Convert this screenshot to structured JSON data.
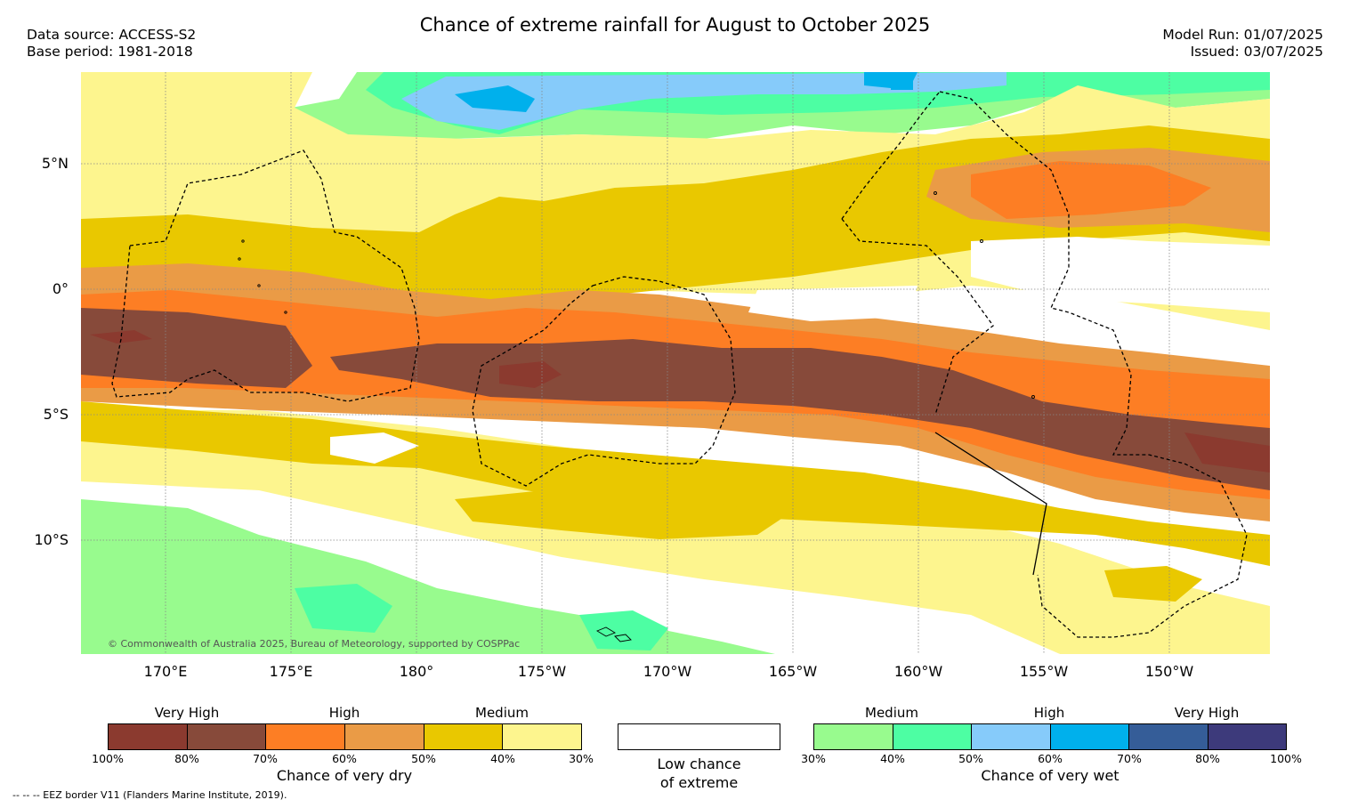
{
  "title": "Chance of extreme rainfall for August to October 2025",
  "header": {
    "data_source": "Data source: ACCESS-S2",
    "base_period": "Base period: 1981-2018",
    "model_run": "Model Run: 01/07/2025",
    "issued": "Issued: 03/07/2025"
  },
  "map": {
    "lat_labels": [
      "5°N",
      "0°",
      "5°S",
      "10°S"
    ],
    "lon_labels": [
      "170°E",
      "175°E",
      "180°",
      "175°W",
      "170°W",
      "165°W",
      "160°W",
      "155°W",
      "150°W"
    ],
    "copyright": "© Commonwealth of Australia 2025, Bureau of Meteorology, supported by COSPPac",
    "colors": {
      "dry_100_80": "#8b3a2f",
      "dry_80_70": "#874a3a",
      "dry_70_60": "#fd7e24",
      "dry_60_50": "#ea9b46",
      "dry_50_40": "#e9c800",
      "dry_40_30": "#fdf58e",
      "low": "#ffffff",
      "wet_30_40": "#98fb8e",
      "wet_40_50": "#4dfea3",
      "wet_50_60": "#86cbfa",
      "wet_60_70": "#00b0ec",
      "wet_70_80": "#355d98",
      "wet_80_100": "#3d3a7b"
    }
  },
  "legend": {
    "dry": {
      "categories": [
        "Very High",
        "High",
        "Medium"
      ],
      "ticks": [
        "100%",
        "80%",
        "70%",
        "60%",
        "50%",
        "40%",
        "30%"
      ],
      "title": "Chance of very dry"
    },
    "low": {
      "line1": "Low chance",
      "line2": "of extreme"
    },
    "wet": {
      "categories": [
        "Medium",
        "High",
        "Very High"
      ],
      "ticks": [
        "30%",
        "40%",
        "50%",
        "60%",
        "70%",
        "80%",
        "100%"
      ],
      "title": "Chance of very wet"
    }
  },
  "footer": {
    "eez_note": "--  --  -- EEZ border V11 (Flanders Marine Institute, 2019)."
  }
}
